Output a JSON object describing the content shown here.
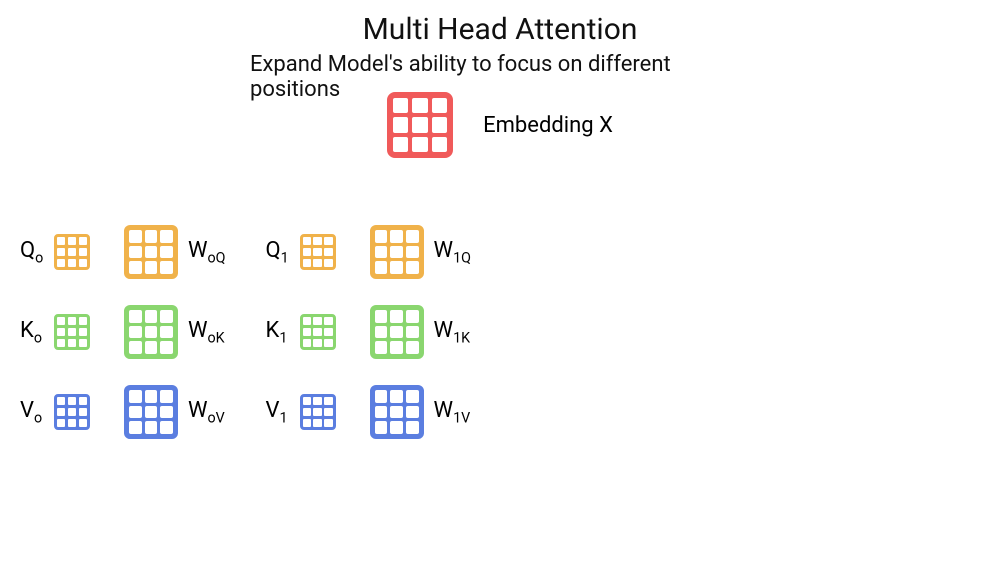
{
  "title": "Multi Head Attention",
  "subtitle": "Expand Model's ability to focus on different positions",
  "embedding": {
    "label": "Embedding X",
    "color": "#f05a5a",
    "size": 66,
    "border_radius": 8,
    "outer_border_width": 6,
    "cell_gap": 4,
    "cell_radius": 2
  },
  "heads": [
    {
      "rows": [
        {
          "left_main": "Q",
          "left_sub": "o",
          "right_main": "W",
          "right_sub": "oQ",
          "color": "#f0b24a"
        },
        {
          "left_main": "K",
          "left_sub": "o",
          "right_main": "W",
          "right_sub": "oK",
          "color": "#8ad66f"
        },
        {
          "left_main": "V",
          "left_sub": "o",
          "right_main": "W",
          "right_sub": "oV",
          "color": "#5b7ee0"
        }
      ]
    },
    {
      "rows": [
        {
          "left_main": "Q",
          "left_sub": "1",
          "right_main": "W",
          "right_sub": "1Q",
          "color": "#f0b24a"
        },
        {
          "left_main": "K",
          "left_sub": "1",
          "right_main": "W",
          "right_sub": "1K",
          "color": "#8ad66f"
        },
        {
          "left_main": "V",
          "left_sub": "1",
          "right_main": "W",
          "right_sub": "1V",
          "color": "#5b7ee0"
        }
      ]
    }
  ],
  "grid_small": {
    "size": 36,
    "border_radius": 4,
    "outer_border_width": 3,
    "cell_gap": 2.5,
    "cell_radius": 1
  },
  "grid_big": {
    "size": 54,
    "border_radius": 6,
    "outer_border_width": 5,
    "cell_gap": 3,
    "cell_radius": 2
  },
  "text_color": "#111111",
  "background_color": "#ffffff"
}
